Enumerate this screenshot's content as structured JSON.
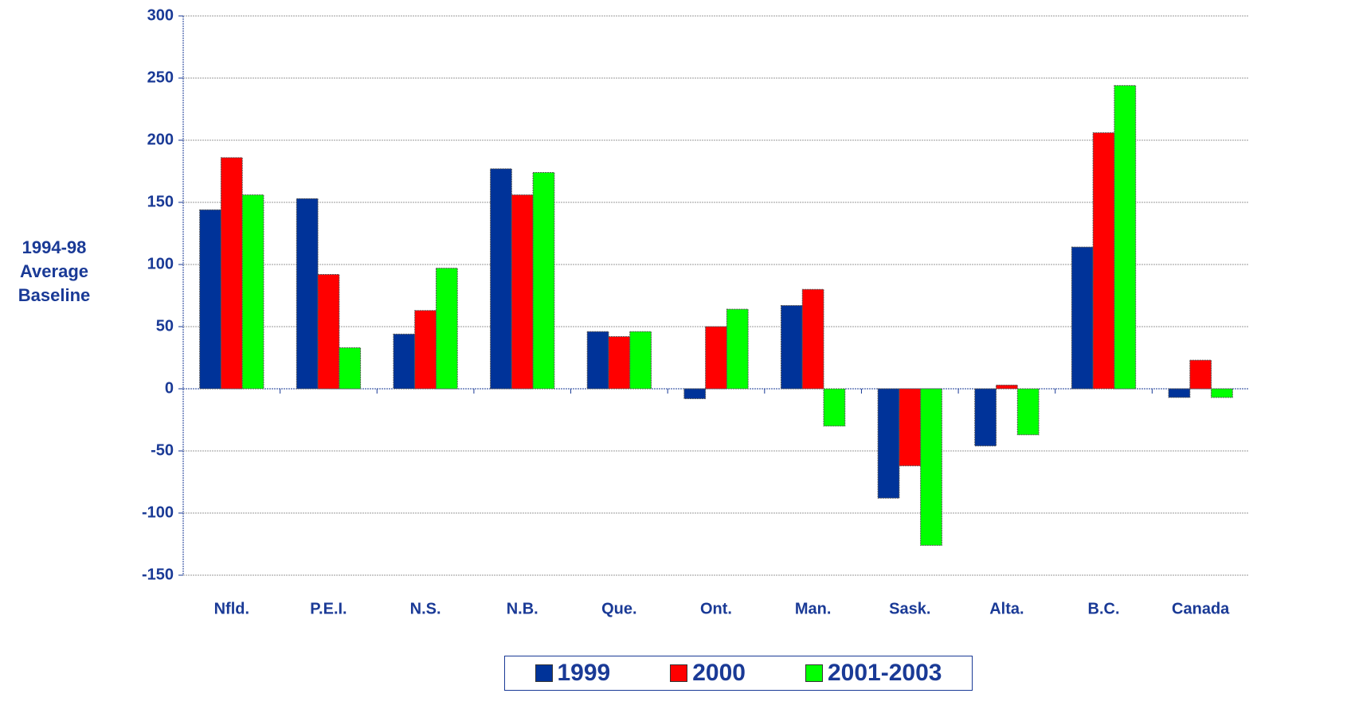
{
  "chart_data": {
    "type": "bar",
    "ylabel": "1994-98 Average Baseline",
    "categories": [
      "Nfld.",
      "P.E.I.",
      "N.S.",
      "N.B.",
      "Que.",
      "Ont.",
      "Man.",
      "Sask.",
      "Alta.",
      "B.C.",
      "Canada"
    ],
    "series": [
      {
        "name": "1999",
        "color": "#003399",
        "values": [
          144,
          153,
          44,
          177,
          46,
          -8,
          67,
          -88,
          -46,
          114,
          -7
        ]
      },
      {
        "name": "2000",
        "color": "#ff0000",
        "values": [
          186,
          92,
          63,
          156,
          42,
          50,
          80,
          -62,
          3,
          206,
          23
        ]
      },
      {
        "name": "2001-2003",
        "color": "#00ff00",
        "values": [
          156,
          33,
          97,
          174,
          46,
          64,
          -30,
          -126,
          -37,
          244,
          -7
        ]
      }
    ],
    "ylim": [
      -150,
      300
    ],
    "yticks": [
      -150,
      -100,
      -50,
      0,
      50,
      100,
      150,
      200,
      250,
      300
    ],
    "grid": true
  }
}
